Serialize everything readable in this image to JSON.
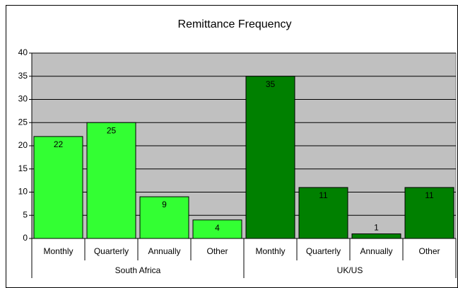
{
  "chart_data": {
    "type": "bar",
    "title": "Remittance Frequency",
    "series": [
      {
        "name": "South Africa",
        "color": "#33ff33",
        "categories": [
          "Monthly",
          "Quarterly",
          "Annually",
          "Other"
        ],
        "values": [
          22,
          25,
          9,
          4
        ]
      },
      {
        "name": "UK/US",
        "color": "#008000",
        "categories": [
          "Monthly",
          "Quarterly",
          "Annually",
          "Other"
        ],
        "values": [
          35,
          11,
          1,
          11
        ]
      }
    ],
    "ylim": [
      0,
      40
    ],
    "yticks": [
      0,
      5,
      10,
      15,
      20,
      25,
      30,
      35,
      40
    ],
    "grid": true
  }
}
